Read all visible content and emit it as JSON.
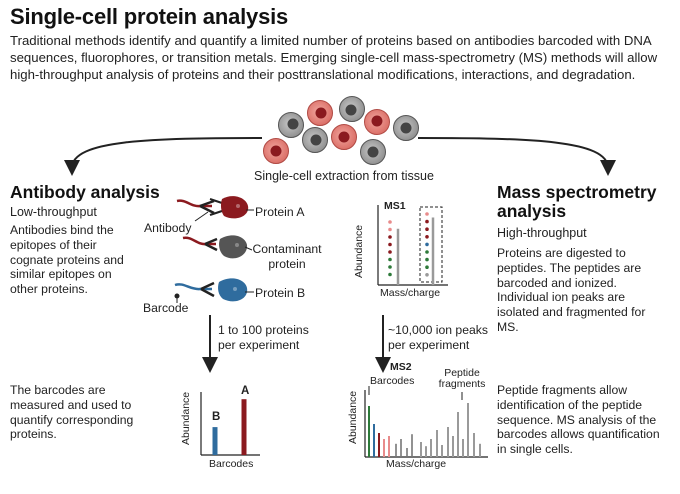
{
  "title": "Single-cell protein analysis",
  "intro": "Traditional methods identify and quantify a limited number of proteins based on antibodies barcoded with DNA sequences, fluorophores, or transition metals. Emerging single-cell mass-spectrometry (MS) methods will allow high-throughput analysis of proteins and their posttranslational modifications, interactions, and degradation.",
  "extraction_label": "Single-cell extraction from tissue",
  "antibody": {
    "heading": "Antibody analysis",
    "throughput": "Low-throughput",
    "description": "Antibodies bind the epitopes of their cognate proteins and similar epitopes on other proteins.",
    "label_antibody": "Antibody",
    "label_protein_a": "Protein A",
    "label_contaminant": "Contaminant protein",
    "label_barcode": "Barcode",
    "label_protein_b": "Protein B",
    "step_label": "1 to 100 proteins per experiment",
    "result_text": "The barcodes are measured and used to quantify corresponding proteins."
  },
  "ms": {
    "heading": "Mass spectrometry analysis",
    "throughput": "High-throughput",
    "description": "Proteins are digested to peptides. The peptides are barcoded and ionized. Individual ion peaks are isolated and fragmented for MS.",
    "step_label": "~10,000 ion peaks per experiment",
    "result_text": "Peptide fragments allow identification of the peptide sequence. MS analysis of the barcodes allows quantification in single cells."
  },
  "chart_data": [
    {
      "type": "bar",
      "title": "",
      "xlabel": "Barcodes",
      "ylabel": "Abundance",
      "categories": [
        "B",
        "A"
      ],
      "values": [
        0.45,
        0.9
      ],
      "colors": [
        "#2f6c9e",
        "#8b1a1f"
      ]
    },
    {
      "type": "bar",
      "title": "MS1",
      "xlabel": "Mass/charge",
      "ylabel": "Abundance",
      "categories": [
        "peak 1",
        "peak 2"
      ],
      "values": [
        0.75,
        0.9
      ]
    },
    {
      "type": "bar",
      "title": "MS2",
      "xlabel": "Mass/charge",
      "ylabel": "Abundance",
      "annotations": [
        "Barcodes",
        "Peptide fragments"
      ],
      "series": [
        {
          "name": "Barcodes",
          "values": [
            0.85,
            0.55,
            0.4,
            0.3,
            0.35
          ]
        },
        {
          "name": "Peptide fragments",
          "values": [
            0.25,
            0.18,
            0.3,
            0.45,
            0.2,
            0.5,
            0.35,
            0.75,
            0.3,
            0.9,
            0.4,
            0.22
          ]
        }
      ]
    }
  ],
  "colors": {
    "gray": "#9a9a9a",
    "red": "#8b1a1f",
    "blue": "#2f6c9e",
    "green": "#2e7a3a",
    "pink": "#e88b8b"
  },
  "icons": [
    "cell-icon",
    "antibody-icon",
    "protein-icon",
    "arrow-icon"
  ]
}
